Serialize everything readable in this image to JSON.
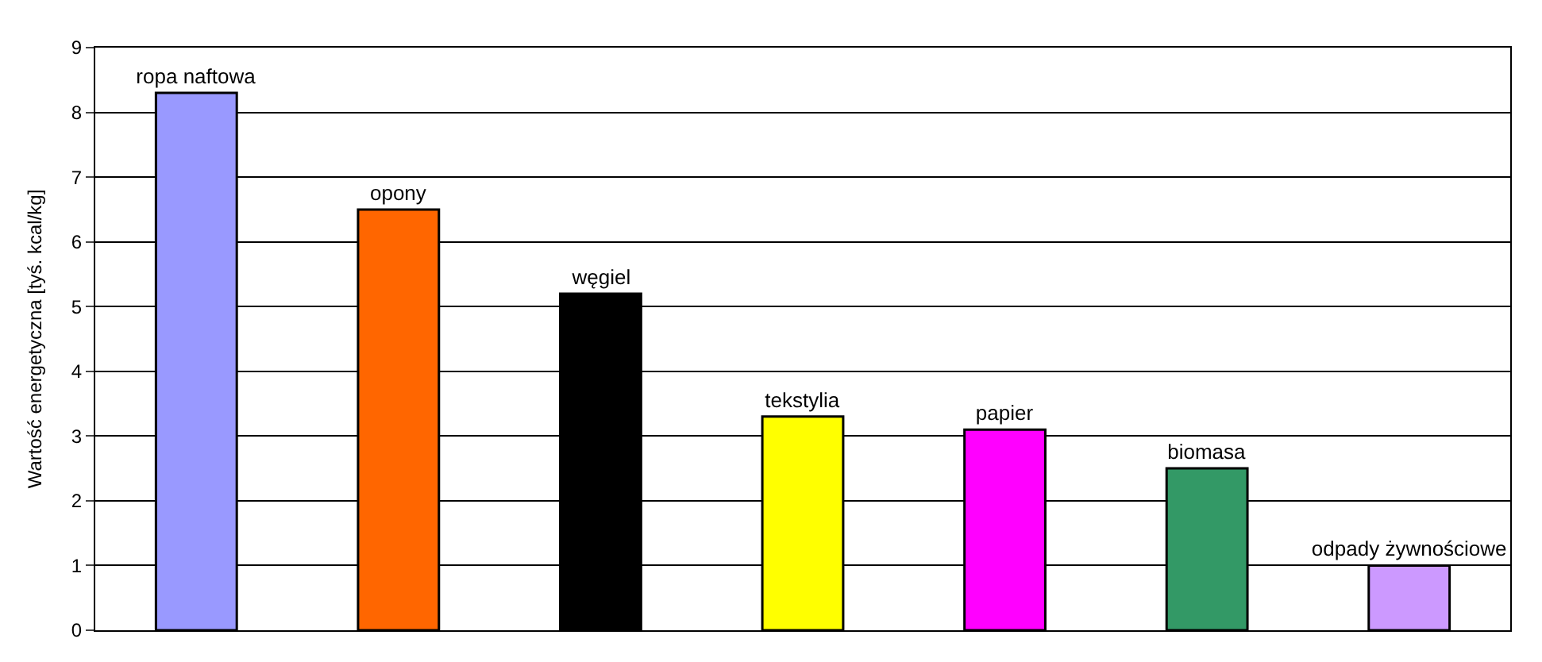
{
  "chart_data": {
    "type": "bar",
    "ylabel": "Wartość energetyczna [tyś. kcal/kg]",
    "categories": [
      "ropa naftowa",
      "opony",
      "węgiel",
      "tekstylia",
      "papier",
      "biomasa",
      "odpady żywnościowe"
    ],
    "values": [
      8.3,
      6.5,
      5.2,
      3.3,
      3.1,
      2.5,
      1.0
    ],
    "colors": [
      "#9999ff",
      "#ff6600",
      "#000000",
      "#ffff00",
      "#ff00ff",
      "#339966",
      "#cc99ff"
    ],
    "ylim": [
      0,
      9
    ],
    "yticks": [
      0,
      1,
      2,
      3,
      4,
      5,
      6,
      7,
      8,
      9
    ],
    "grid": "y",
    "tick_labels": "y"
  }
}
